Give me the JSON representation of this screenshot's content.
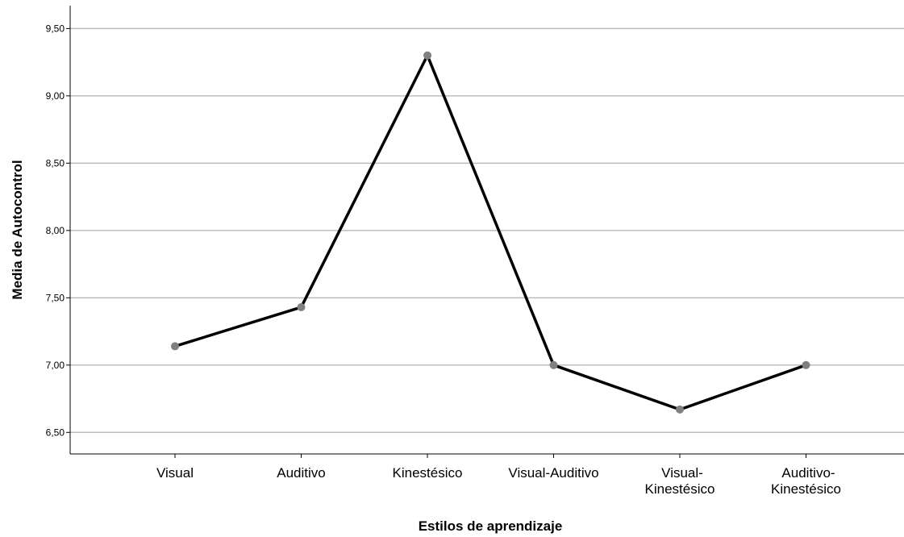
{
  "chart_data": {
    "type": "line",
    "xlabel": "Estilos de aprendizaje",
    "ylabel": "Media de Autocontrol",
    "categories": [
      [
        "Visual"
      ],
      [
        "Auditivo"
      ],
      [
        "Kinestésico"
      ],
      [
        "Visual-Auditivo"
      ],
      [
        "Visual-",
        "Kinestésico"
      ],
      [
        "Auditivo-",
        "Kinestésico"
      ]
    ],
    "values": [
      7.14,
      7.43,
      9.3,
      7.0,
      6.67,
      7.0
    ],
    "ylim": [
      6.34,
      9.67
    ],
    "yticks": [
      6.5,
      7.0,
      7.5,
      8.0,
      8.5,
      9.0,
      9.5
    ],
    "ytick_labels": [
      "6,50",
      "7,00",
      "7,50",
      "8,00",
      "8,50",
      "9,00",
      "9,50"
    ],
    "grid": true,
    "line_color": "#000000",
    "marker_color": "#808080"
  }
}
